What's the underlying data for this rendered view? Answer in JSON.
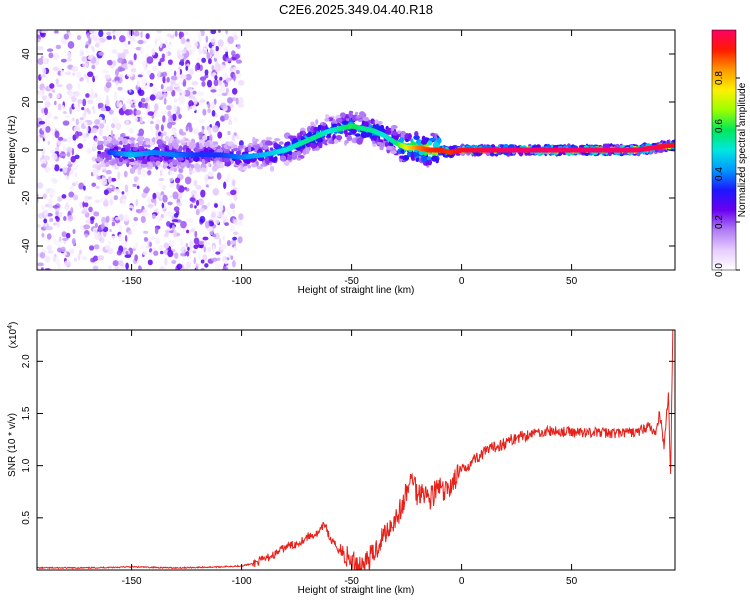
{
  "page_title": "C2E6.2025.349.04.40.R18",
  "chart_data": [
    {
      "type": "heatmap",
      "title": "",
      "xlabel": "Height of straight line (km)",
      "ylabel": "Frequency (Hz)",
      "xlim": [
        -193,
        97
      ],
      "ylim": [
        -50,
        50
      ],
      "xticks": [
        -150,
        -100,
        -50,
        0,
        50
      ],
      "yticks": [
        -40,
        -20,
        0,
        20,
        40
      ],
      "colorbar": {
        "label": "Normalized spectral amplitude",
        "range": [
          0,
          1
        ],
        "ticks": [
          0.0,
          0.2,
          0.4,
          0.6,
          0.8
        ],
        "colormap": [
          "#ffffff",
          "#e7ccff",
          "#b07af5",
          "#6a00f0",
          "#1d17ff",
          "#0099ff",
          "#00e8e0",
          "#00e85a",
          "#9cff00",
          "#fff000",
          "#ff9900",
          "#ff1a00",
          "#ff0066"
        ]
      },
      "ridge": {
        "description": "frequency of peak amplitude vs height",
        "x": [
          -160,
          -150,
          -140,
          -130,
          -120,
          -110,
          -100,
          -90,
          -80,
          -70,
          -65,
          -60,
          -55,
          -50,
          -45,
          -40,
          -35,
          -30,
          -25,
          -20,
          -15,
          -10,
          -5,
          0,
          20,
          40,
          60,
          80,
          95
        ],
        "y": [
          -1,
          -2,
          -1,
          -2,
          -2,
          -2,
          -3,
          -2,
          0,
          4,
          6,
          8,
          9,
          10,
          9,
          8,
          6,
          3,
          1,
          1,
          0,
          0,
          -1,
          0,
          0,
          0,
          0,
          0,
          2
        ],
        "peak_amplitude": [
          0.35,
          0.45,
          0.4,
          0.4,
          0.35,
          0.35,
          0.4,
          0.45,
          0.5,
          0.55,
          0.55,
          0.5,
          0.55,
          0.6,
          0.55,
          0.55,
          0.5,
          0.55,
          0.75,
          0.85,
          0.9,
          0.92,
          0.9,
          0.95,
          1.0,
          1.0,
          1.0,
          1.0,
          0.95
        ]
      }
    },
    {
      "type": "line",
      "title": "",
      "xlabel": "Height of straight line (km)",
      "ylabel": "SNR (10 * v/v)",
      "yscale_label": "(x10",
      "yscale_exponent": "4",
      "xlim": [
        -193,
        97
      ],
      "ylim": [
        0,
        2.3
      ],
      "xticks": [
        -150,
        -100,
        -50,
        0,
        50
      ],
      "yticks": [
        0.5,
        1.0,
        1.5,
        2.0
      ],
      "series": [
        {
          "color": "#e8201a",
          "x": [
            -193,
            -170,
            -150,
            -130,
            -110,
            -100,
            -95,
            -90,
            -85,
            -80,
            -75,
            -70,
            -65,
            -62,
            -60,
            -55,
            -50,
            -45,
            -40,
            -37,
            -35,
            -30,
            -27,
            -25,
            -22,
            -20,
            -18,
            -15,
            -12,
            -10,
            -8,
            -5,
            -2,
            0,
            5,
            10,
            15,
            20,
            25,
            30,
            35,
            40,
            50,
            60,
            70,
            80,
            85,
            88,
            90,
            92,
            94,
            95,
            96
          ],
          "y": [
            0.02,
            0.02,
            0.03,
            0.02,
            0.03,
            0.04,
            0.06,
            0.1,
            0.15,
            0.22,
            0.25,
            0.32,
            0.35,
            0.45,
            0.3,
            0.18,
            0.08,
            0.05,
            0.15,
            0.28,
            0.35,
            0.5,
            0.6,
            0.75,
            0.9,
            0.7,
            0.8,
            0.68,
            0.75,
            0.8,
            0.72,
            0.82,
            0.9,
            0.95,
            1.05,
            1.12,
            1.18,
            1.22,
            1.27,
            1.3,
            1.32,
            1.33,
            1.32,
            1.32,
            1.31,
            1.32,
            1.38,
            1.3,
            1.5,
            1.2,
            1.7,
            0.9,
            2.3
          ]
        }
      ]
    }
  ]
}
